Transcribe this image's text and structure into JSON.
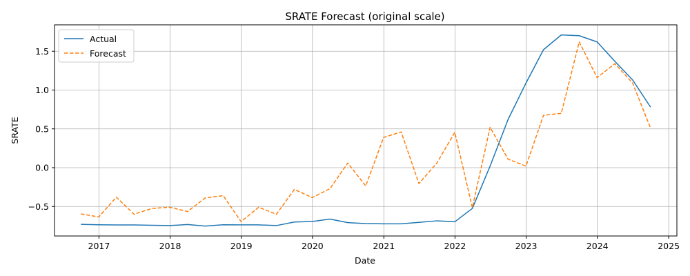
{
  "chart_data": {
    "type": "line",
    "title": "SRATE Forecast (original scale)",
    "xlabel": "Date",
    "ylabel": "SRATE",
    "x": [
      "2016-09-30",
      "2016-12-31",
      "2017-03-31",
      "2017-06-30",
      "2017-09-30",
      "2017-12-31",
      "2018-03-31",
      "2018-06-30",
      "2018-09-30",
      "2018-12-31",
      "2019-03-31",
      "2019-06-30",
      "2019-09-30",
      "2019-12-31",
      "2020-03-31",
      "2020-06-30",
      "2020-09-30",
      "2020-12-31",
      "2021-03-31",
      "2021-06-30",
      "2021-09-30",
      "2021-12-31",
      "2022-03-31",
      "2022-06-30",
      "2022-09-30",
      "2022-12-31",
      "2023-03-31",
      "2023-06-30",
      "2023-09-30",
      "2023-12-31",
      "2024-03-31",
      "2024-06-30",
      "2024-09-30"
    ],
    "series": [
      {
        "name": "Actual",
        "color": "#1f77b4",
        "style": "solid",
        "values": [
          -0.73,
          -0.735,
          -0.738,
          -0.738,
          -0.742,
          -0.746,
          -0.732,
          -0.752,
          -0.735,
          -0.737,
          -0.737,
          -0.746,
          -0.7,
          -0.693,
          -0.662,
          -0.708,
          -0.72,
          -0.723,
          -0.723,
          -0.705,
          -0.685,
          -0.697,
          -0.525,
          0.02,
          0.62,
          1.09,
          1.52,
          1.71,
          1.7,
          1.62,
          1.37,
          1.13,
          0.78
        ]
      },
      {
        "name": "Forecast",
        "color": "#ff7f0e",
        "style": "dashed",
        "values": [
          -0.595,
          -0.635,
          -0.38,
          -0.6,
          -0.525,
          -0.51,
          -0.565,
          -0.39,
          -0.36,
          -0.695,
          -0.51,
          -0.6,
          -0.28,
          -0.385,
          -0.27,
          0.06,
          -0.235,
          0.39,
          0.46,
          -0.205,
          0.06,
          0.455,
          -0.515,
          0.52,
          0.11,
          0.02,
          0.675,
          0.7,
          1.62,
          1.16,
          1.34,
          1.09,
          0.51
        ]
      }
    ],
    "xticks": [
      "2017",
      "2018",
      "2019",
      "2020",
      "2021",
      "2022",
      "2023",
      "2024",
      "2025"
    ],
    "yticks": [
      -0.5,
      0.0,
      0.5,
      1.0,
      1.5
    ],
    "ytick_labels": [
      "−0.5",
      "0.0",
      "0.5",
      "1.0",
      "1.5"
    ],
    "xlim": [
      "2016-05-18",
      "2025-02-12"
    ],
    "ylim": [
      -0.88,
      1.84
    ],
    "grid": true,
    "legend": "top-left"
  }
}
